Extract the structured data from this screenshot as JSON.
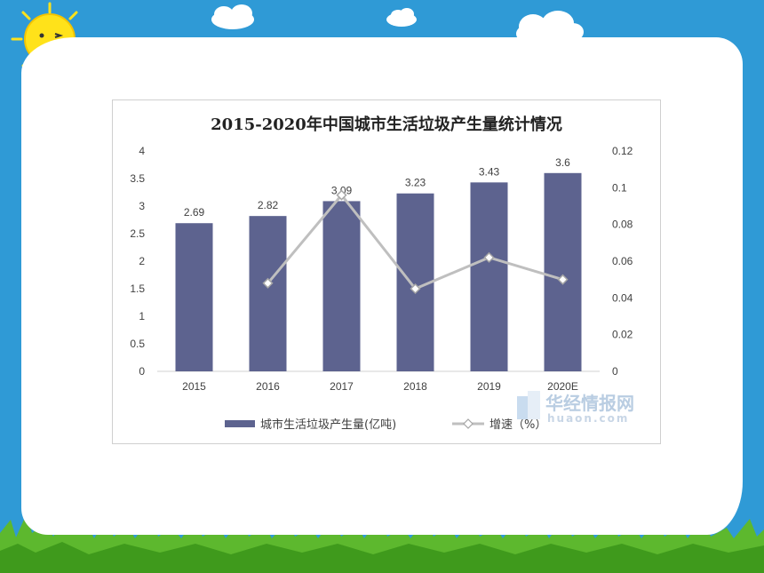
{
  "chart_data": {
    "type": "bar",
    "title": "2015-2020年中国城市生活垃圾产生量统计情况",
    "categories": [
      "2015",
      "2016",
      "2017",
      "2018",
      "2019",
      "2020E"
    ],
    "series": [
      {
        "name": "城市生活垃圾产生量(亿吨)",
        "type": "bar",
        "axis": "left",
        "values": [
          2.69,
          2.82,
          3.09,
          3.23,
          3.43,
          3.6
        ],
        "labels": [
          "2.69",
          "2.82",
          "3.09",
          "3.23",
          "3.43",
          "3.6"
        ]
      },
      {
        "name": "增速（%）",
        "type": "line",
        "axis": "right",
        "values": [
          null,
          0.048,
          0.096,
          0.045,
          0.062,
          0.05
        ]
      }
    ],
    "y_left": {
      "min": 0,
      "max": 4,
      "ticks": [
        "0",
        "0.5",
        "1",
        "1.5",
        "2",
        "2.5",
        "3",
        "3.5",
        "4"
      ]
    },
    "y_right": {
      "min": 0,
      "max": 0.12,
      "ticks": [
        "0",
        "0.02",
        "0.04",
        "0.06",
        "0.08",
        "0.1",
        "0.12"
      ]
    },
    "grid": false,
    "legend_position": "bottom"
  },
  "watermark": {
    "name": "华经情报网",
    "sub": "huaon.com"
  },
  "colors": {
    "bar": "#5d638f",
    "line": "#bfbfbf",
    "marker_fill": "#ffffff",
    "marker_stroke": "#a6a6a6",
    "sky": "#2f9ad6",
    "grass": "#5db82e",
    "sun": "#ffe21a"
  }
}
